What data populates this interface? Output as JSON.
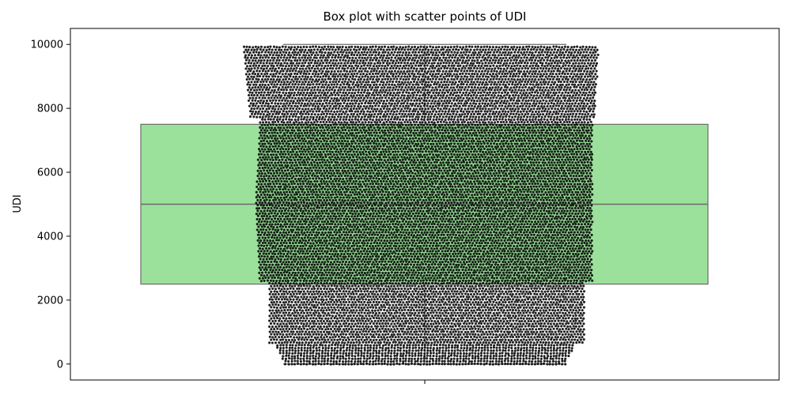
{
  "chart_data": {
    "type": "box",
    "title": "Box plot with scatter points of UDI",
    "xlabel": "",
    "ylabel": "UDI",
    "ylim": [
      -500,
      10500
    ],
    "yticks": [
      0,
      2000,
      4000,
      6000,
      8000,
      10000
    ],
    "grid": false,
    "box": {
      "color": "#9be09b",
      "edge_color": "#6b6b6b",
      "min": 1,
      "q1": 2500,
      "median": 5000,
      "q3": 7500,
      "max": 10000
    },
    "scatter": {
      "color": "#000000",
      "n_points": 10000,
      "y_min": 1,
      "y_max": 10000,
      "style": "swarm"
    }
  }
}
